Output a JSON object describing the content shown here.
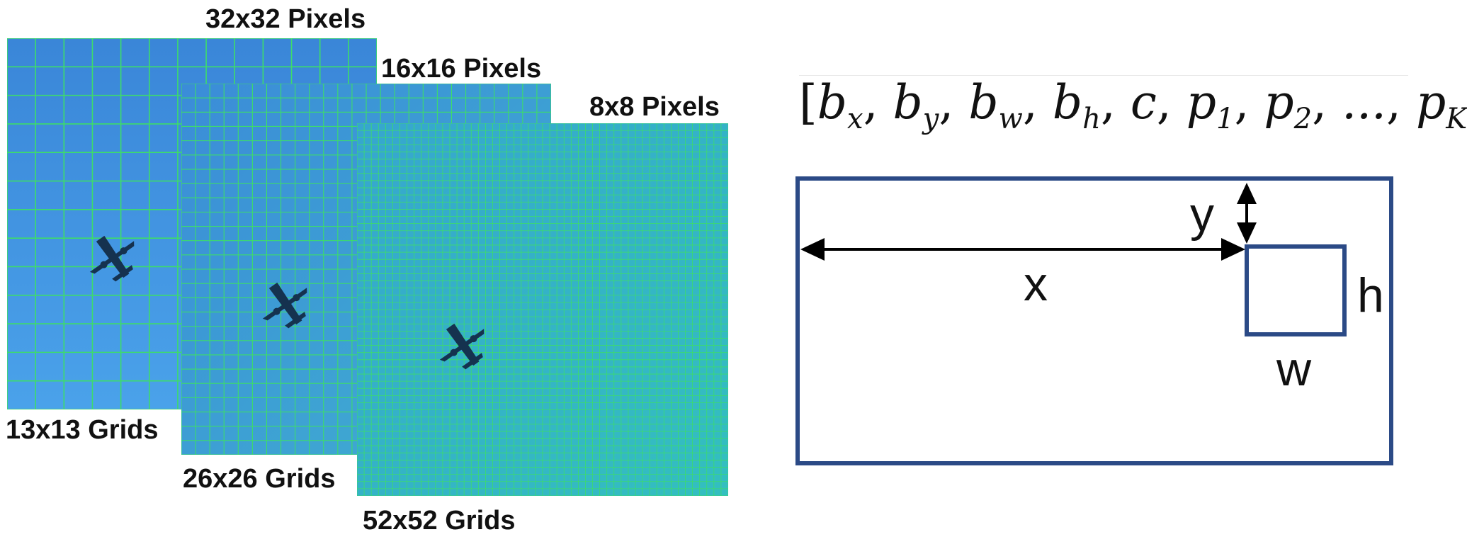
{
  "colors": {
    "sky1": "#3f8fdc",
    "sky2": "#3ea2d9",
    "sky3": "#34b9c4",
    "grid": "#3ddc6a",
    "box": "#2b4a86",
    "plane": "#15324f"
  },
  "grids": [
    {
      "pixels_label": "32x32 Pixels",
      "grids_label": "13x13 Grids",
      "cells": 13
    },
    {
      "pixels_label": "16x16 Pixels",
      "grids_label": "26x26 Grids",
      "cells": 26
    },
    {
      "pixels_label": "8x8 Pixels",
      "grids_label": "52x52 Grids",
      "cells": 52
    }
  ],
  "formula": {
    "open": "[",
    "terms": [
      {
        "base": "b",
        "sub": "x"
      },
      {
        "base": "b",
        "sub": "y"
      },
      {
        "base": "b",
        "sub": "w"
      },
      {
        "base": "b",
        "sub": "h"
      },
      {
        "base": "c",
        "sub": ""
      },
      {
        "base": "p",
        "sub": "1"
      },
      {
        "base": "p",
        "sub": "2"
      },
      {
        "base": "...",
        "sub": ""
      },
      {
        "base": "p",
        "sub": "K"
      }
    ],
    "close": "]"
  },
  "bbox_diagram": {
    "x_label": "x",
    "y_label": "y",
    "w_label": "w",
    "h_label": "h"
  }
}
